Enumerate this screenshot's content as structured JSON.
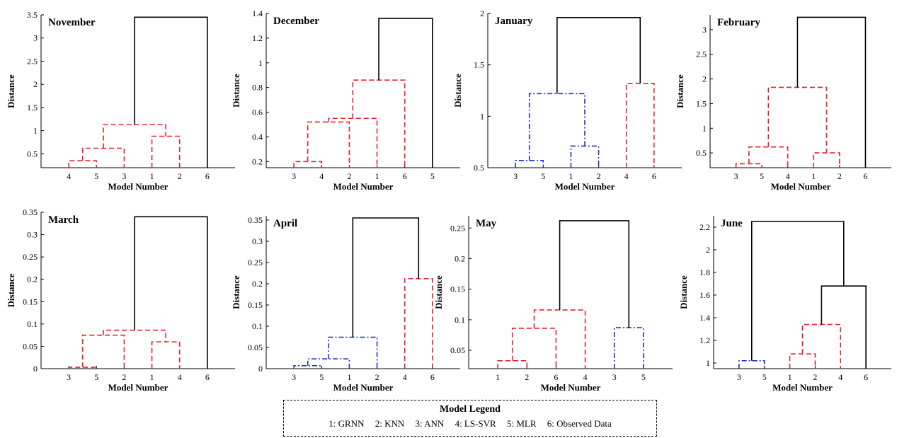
{
  "legend": {
    "title": "Model Legend",
    "items": [
      "1: GRNN",
      "2: KNN",
      "3: ANN",
      "4: LS-SVR",
      "5: MLR",
      "6: Observed Data"
    ]
  },
  "colors": {
    "black": "#000000",
    "red": "#e8202a",
    "blue": "#1f2fd6"
  },
  "chart_data": [
    {
      "type": "dendrogram",
      "title": "November",
      "xlabel": "Model Number",
      "ylabel": "Distance",
      "leaves": [
        "4",
        "5",
        "3",
        "1",
        "2",
        "6"
      ],
      "ylim": [
        0.2,
        3.5
      ],
      "yticks": [
        0.5,
        1,
        1.5,
        2,
        2.5,
        3,
        3.5
      ],
      "links": [
        {
          "left": "4",
          "right": "5",
          "height": 0.35,
          "color": "red"
        },
        {
          "left": "[4,5]",
          "right": "3",
          "height": 0.62,
          "color": "red"
        },
        {
          "left": "1",
          "right": "2",
          "height": 0.88,
          "color": "red"
        },
        {
          "left": "[4,5,3]",
          "right": "[1,2]",
          "height": 1.13,
          "color": "red"
        },
        {
          "left": "[4,5,3,1,2]",
          "right": "6",
          "height": 3.45,
          "color": "black"
        }
      ]
    },
    {
      "type": "dendrogram",
      "title": "December",
      "xlabel": "Model Number",
      "ylabel": "Distance",
      "leaves": [
        "3",
        "4",
        "2",
        "1",
        "6",
        "5"
      ],
      "ylim": [
        0.15,
        1.4
      ],
      "yticks": [
        0.2,
        0.4,
        0.6,
        0.8,
        1,
        1.2,
        1.4
      ],
      "links": [
        {
          "left": "3",
          "right": "4",
          "height": 0.2,
          "color": "red"
        },
        {
          "left": "[3,4]",
          "right": "2",
          "height": 0.52,
          "color": "red"
        },
        {
          "left": "[3,4,2]",
          "right": "1",
          "height": 0.55,
          "color": "red"
        },
        {
          "left": "[3,4,2,1]",
          "right": "6",
          "height": 0.86,
          "color": "red"
        },
        {
          "left": "[3,4,2,1,6]",
          "right": "5",
          "height": 1.36,
          "color": "black"
        }
      ]
    },
    {
      "type": "dendrogram",
      "title": "January",
      "xlabel": "Model Number",
      "ylabel": "Distance",
      "leaves": [
        "3",
        "5",
        "1",
        "2",
        "4",
        "6"
      ],
      "ylim": [
        0.5,
        2
      ],
      "yticks": [
        0.5,
        1,
        1.5,
        2
      ],
      "links": [
        {
          "left": "3",
          "right": "5",
          "height": 0.57,
          "color": "blue"
        },
        {
          "left": "1",
          "right": "2",
          "height": 0.71,
          "color": "blue"
        },
        {
          "left": "[3,5]",
          "right": "[1,2]",
          "height": 1.22,
          "color": "blue"
        },
        {
          "left": "4",
          "right": "6",
          "height": 1.32,
          "color": "red"
        },
        {
          "left": "[3,5,1,2]",
          "right": "[4,6]",
          "height": 1.96,
          "color": "black"
        }
      ]
    },
    {
      "type": "dendrogram",
      "title": "February",
      "xlabel": "Model Number",
      "ylabel": "Distance",
      "leaves": [
        "3",
        "5",
        "4",
        "1",
        "2",
        "6"
      ],
      "ylim": [
        0.2,
        3.3
      ],
      "yticks": [
        0.5,
        1,
        1.5,
        2,
        2.5,
        3
      ],
      "links": [
        {
          "left": "3",
          "right": "5",
          "height": 0.28,
          "color": "red"
        },
        {
          "left": "[3,5]",
          "right": "4",
          "height": 0.62,
          "color": "red"
        },
        {
          "left": "1",
          "right": "2",
          "height": 0.5,
          "color": "red"
        },
        {
          "left": "[3,5,4]",
          "right": "[1,2]",
          "height": 1.83,
          "color": "red"
        },
        {
          "left": "[3,5,4,1,2]",
          "right": "6",
          "height": 3.25,
          "color": "black"
        }
      ]
    },
    {
      "type": "dendrogram",
      "title": "March",
      "xlabel": "Model Number",
      "ylabel": "Distance",
      "leaves": [
        "3",
        "5",
        "2",
        "1",
        "4",
        "6"
      ],
      "ylim": [
        0,
        0.35
      ],
      "yticks": [
        0,
        0.05,
        0.1,
        0.15,
        0.2,
        0.25,
        0.3,
        0.35
      ],
      "links": [
        {
          "left": "3",
          "right": "5",
          "height": 0.003,
          "color": "red"
        },
        {
          "left": "[3,5]",
          "right": "2",
          "height": 0.075,
          "color": "red"
        },
        {
          "left": "1",
          "right": "4",
          "height": 0.06,
          "color": "red"
        },
        {
          "left": "[3,5,2]",
          "right": "[1,4]",
          "height": 0.086,
          "color": "red"
        },
        {
          "left": "[3,5,2,1,4]",
          "right": "6",
          "height": 0.34,
          "color": "black"
        }
      ]
    },
    {
      "type": "dendrogram",
      "title": "April",
      "xlabel": "Model Number",
      "ylabel": "Distance",
      "leaves": [
        "3",
        "5",
        "1",
        "2",
        "4",
        "6"
      ],
      "ylim": [
        0,
        0.36
      ],
      "yticks": [
        0,
        0.05,
        0.1,
        0.15,
        0.2,
        0.25,
        0.3,
        0.35
      ],
      "links": [
        {
          "left": "3",
          "right": "5",
          "height": 0.007,
          "color": "blue"
        },
        {
          "left": "[3,5]",
          "right": "1",
          "height": 0.023,
          "color": "blue"
        },
        {
          "left": "[3,5,1]",
          "right": "2",
          "height": 0.074,
          "color": "blue"
        },
        {
          "left": "4",
          "right": "6",
          "height": 0.212,
          "color": "red"
        },
        {
          "left": "[3,5,1,2]",
          "right": "[4,6]",
          "height": 0.355,
          "color": "black"
        }
      ]
    },
    {
      "type": "dendrogram",
      "title": "May",
      "xlabel": "Model Number",
      "ylabel": "Distance",
      "leaves": [
        "1",
        "2",
        "6",
        "4",
        "3",
        "5"
      ],
      "ylim": [
        0.02,
        0.27
      ],
      "yticks": [
        0.05,
        0.1,
        0.15,
        0.2,
        0.25
      ],
      "links": [
        {
          "left": "1",
          "right": "2",
          "height": 0.033,
          "color": "red"
        },
        {
          "left": "[1,2]",
          "right": "6",
          "height": 0.086,
          "color": "red"
        },
        {
          "left": "[1,2,6]",
          "right": "4",
          "height": 0.116,
          "color": "red"
        },
        {
          "left": "3",
          "right": "5",
          "height": 0.087,
          "color": "blue"
        },
        {
          "left": "[1,2,6,4]",
          "right": "[3,5]",
          "height": 0.262,
          "color": "black"
        }
      ]
    },
    {
      "type": "dendrogram",
      "title": "June",
      "xlabel": "Model Number",
      "ylabel": "Distance",
      "leaves": [
        "3",
        "5",
        "1",
        "2",
        "4",
        "6"
      ],
      "ylim": [
        0.95,
        2.3
      ],
      "yticks": [
        1,
        1.2,
        1.4,
        1.6,
        1.8,
        2,
        2.2
      ],
      "links": [
        {
          "left": "3",
          "right": "5",
          "height": 1.02,
          "color": "blue"
        },
        {
          "left": "1",
          "right": "2",
          "height": 1.08,
          "color": "red"
        },
        {
          "left": "[1,2]",
          "right": "4",
          "height": 1.34,
          "color": "red"
        },
        {
          "left": "[1,2,4]",
          "right": "6",
          "height": 1.68,
          "color": "black"
        },
        {
          "left": "[3,5]",
          "right": "[1,2,4,6]",
          "height": 2.25,
          "color": "black"
        }
      ]
    }
  ]
}
